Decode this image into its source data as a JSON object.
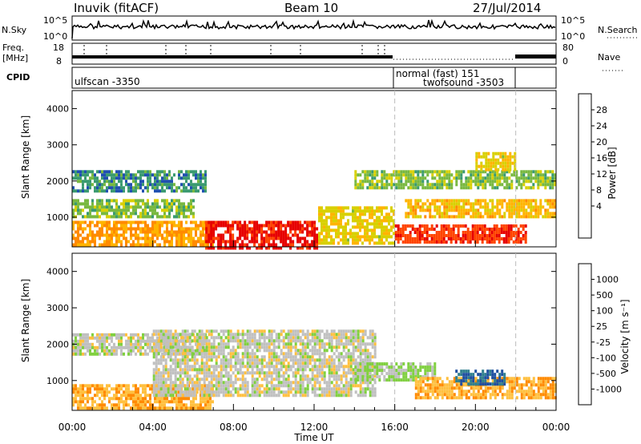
{
  "header": {
    "station": "Inuvik (fitACF)",
    "beam": "Beam 10",
    "date": "27/Jul/2014"
  },
  "top_panels": {
    "nsky_label": "N.Sky",
    "nsky_ticks": [
      "10^5",
      "10^0"
    ],
    "nsearch_label": "N.Search",
    "nsearch_ticks": [
      "10^5",
      "10^0"
    ],
    "freq_label_1": "Freq.",
    "freq_label_2": "[MHz]",
    "freq_ticks": [
      "18",
      "8"
    ],
    "nave_label": "Nave",
    "nave_ticks": [
      "80",
      "0"
    ],
    "cpid_label": "CPID",
    "cpid_entries": [
      {
        "name": "ulfscan -3350"
      },
      {
        "name": "normal (fast) 151"
      },
      {
        "name": "twofsound -3503"
      }
    ]
  },
  "x_axis": {
    "label": "Time UT",
    "ticks": [
      "00:00",
      "04:00",
      "08:00",
      "12:00",
      "16:00",
      "20:00",
      "00:00"
    ]
  },
  "colorbars": {
    "power": {
      "label": "Power [dB]",
      "ticks": [
        "28",
        "24",
        "20",
        "16",
        "12",
        "8",
        "4"
      ],
      "colors": [
        "#e60000",
        "#ff4400",
        "#ff8a00",
        "#ffb400",
        "#d8d000",
        "#78b840",
        "#3a9a70",
        "#2050b0",
        "#0010ff"
      ]
    },
    "velocity": {
      "label": "Velocity [m s⁻¹]",
      "ticks": [
        "1000",
        "500",
        "100",
        "25",
        "-25",
        "-100",
        "-500",
        "-1000"
      ],
      "colors": [
        "#1f4fa0",
        "#2f7f8f",
        "#2f9f4f",
        "#80d040",
        "#c0c0c0",
        "#ffc040",
        "#ff8a00",
        "#ff4000",
        "#e60000"
      ]
    }
  },
  "chart_data": [
    {
      "type": "heatmap",
      "title": "Power",
      "xlabel": "Time UT",
      "ylabel": "Slant Range [km]",
      "xlim": [
        "00:00",
        "24:00"
      ],
      "ylim": [
        180,
        4500
      ],
      "yticks": [
        1000,
        2000,
        3000,
        4000
      ],
      "colorbar": "Power [dB]",
      "clim": [
        0,
        30
      ],
      "regions": [
        {
          "t": [
            0.0,
            6.6
          ],
          "r": [
            1700,
            2300
          ],
          "v": 8
        },
        {
          "t": [
            0.0,
            6.0
          ],
          "r": [
            1000,
            1500
          ],
          "v": 12
        },
        {
          "t": [
            0.0,
            7.0
          ],
          "r": [
            250,
            900
          ],
          "v": 20
        },
        {
          "t": [
            6.6,
            12.2
          ],
          "r": [
            180,
            900
          ],
          "v": 28
        },
        {
          "t": [
            12.2,
            16.0
          ],
          "r": [
            300,
            1300
          ],
          "v": 16
        },
        {
          "t": [
            16.0,
            22.5
          ],
          "r": [
            300,
            800
          ],
          "v": 26
        },
        {
          "t": [
            16.5,
            24.0
          ],
          "r": [
            1000,
            1500
          ],
          "v": 18
        },
        {
          "t": [
            14.0,
            24.0
          ],
          "r": [
            1800,
            2300
          ],
          "v": 12
        },
        {
          "t": [
            20.0,
            22.0
          ],
          "r": [
            2300,
            2800
          ],
          "v": 16
        }
      ],
      "cpid_changes": [
        "16:00",
        "22:00"
      ]
    },
    {
      "type": "heatmap",
      "title": "Velocity",
      "xlabel": "Time UT",
      "ylabel": "Slant Range [km]",
      "xlim": [
        "00:00",
        "24:00"
      ],
      "ylim": [
        180,
        4500
      ],
      "yticks": [
        1000,
        2000,
        3000,
        4000
      ],
      "colorbar": "Velocity [m s⁻¹]",
      "clim": [
        -1000,
        1000
      ],
      "regions": [
        {
          "t": [
            0.0,
            6.6
          ],
          "r": [
            1700,
            2300
          ],
          "v": 0
        },
        {
          "t": [
            0.0,
            7.0
          ],
          "r": [
            200,
            900
          ],
          "v": -300
        },
        {
          "t": [
            4.0,
            15.0
          ],
          "r": [
            600,
            2400
          ],
          "v": 0
        },
        {
          "t": [
            14.0,
            18.0
          ],
          "r": [
            1000,
            1500
          ],
          "v": 150
        },
        {
          "t": [
            17.0,
            24.0
          ],
          "r": [
            500,
            1100
          ],
          "v": -300
        },
        {
          "t": [
            19.0,
            21.5
          ],
          "r": [
            900,
            1300
          ],
          "v": 800
        }
      ],
      "cpid_changes": [
        "16:00",
        "22:00"
      ]
    }
  ]
}
